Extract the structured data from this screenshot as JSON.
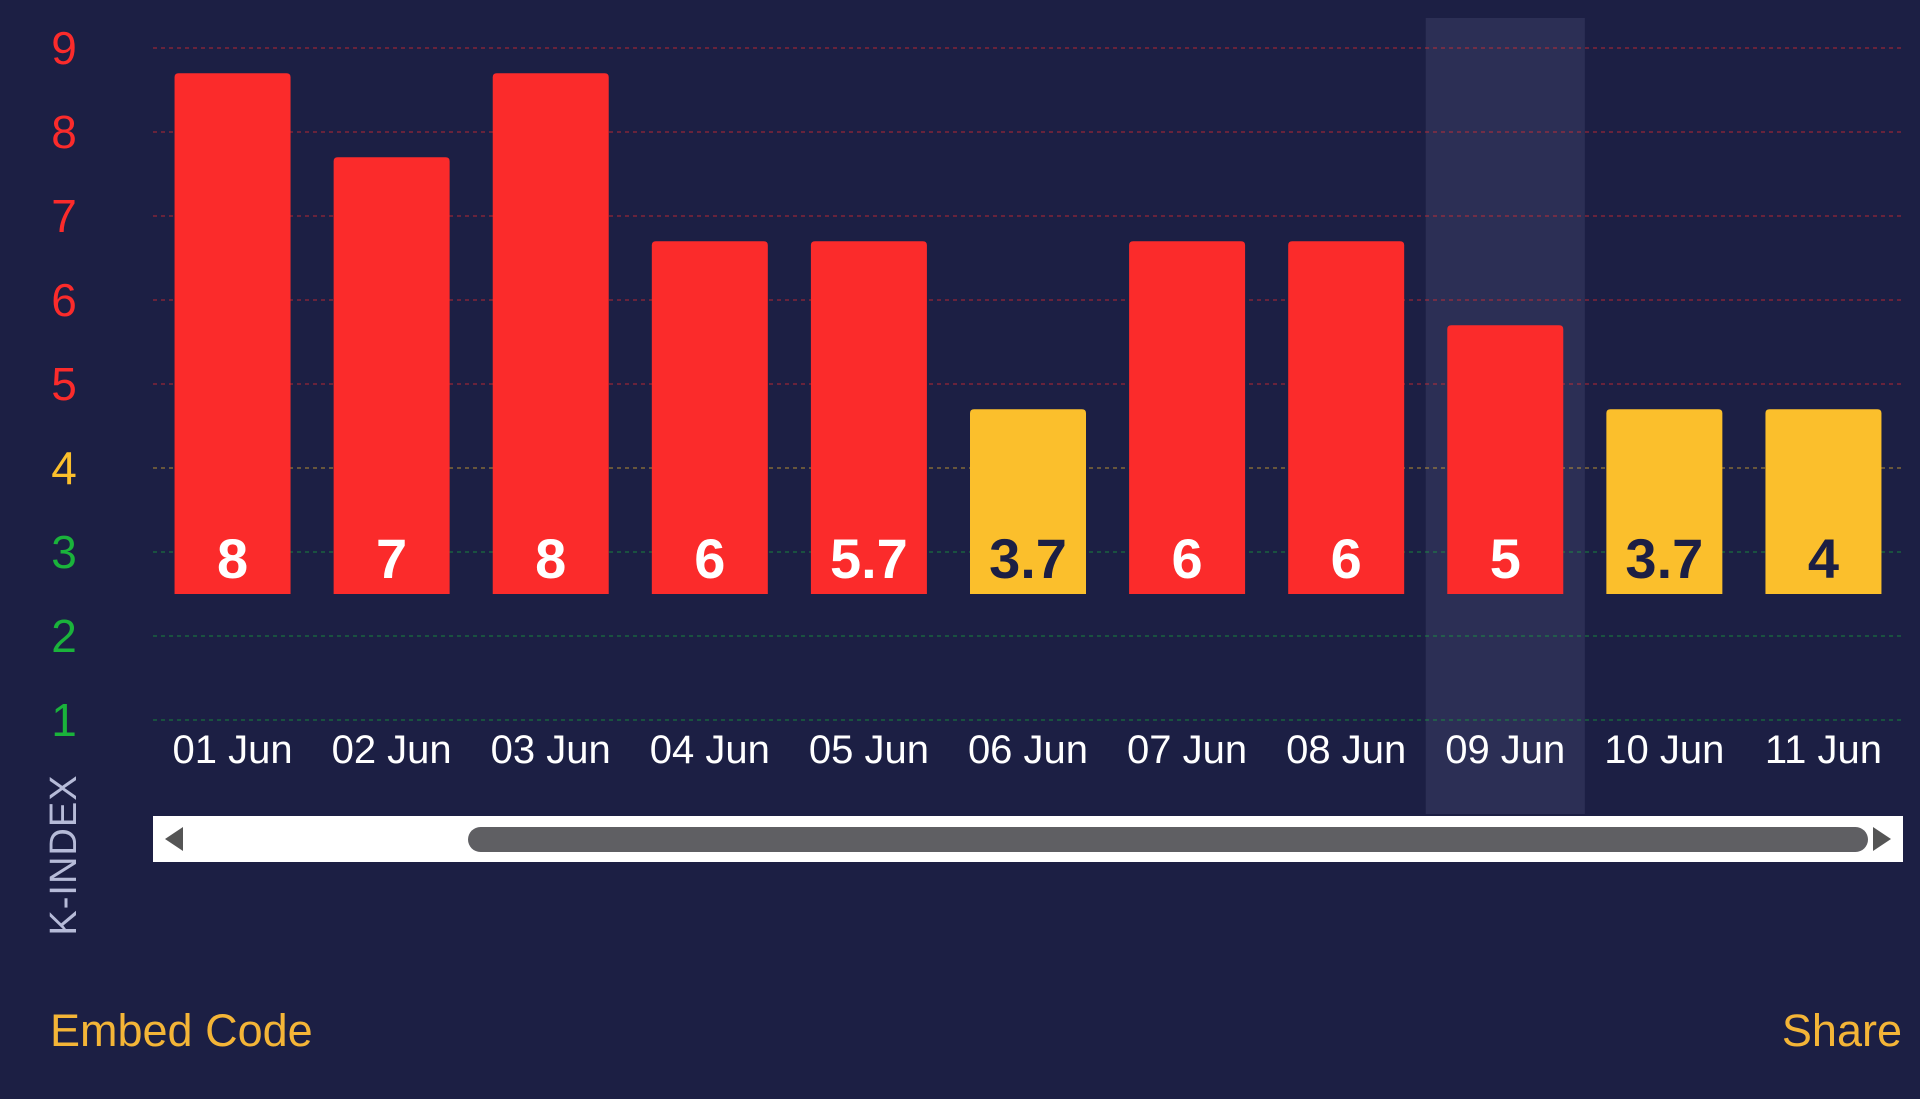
{
  "chart_data": {
    "type": "bar",
    "categories": [
      "01 Jun",
      "02 Jun",
      "03 Jun",
      "04 Jun",
      "05 Jun",
      "06 Jun",
      "07 Jun",
      "08 Jun",
      "09 Jun",
      "10 Jun",
      "11 Jun"
    ],
    "values": [
      8,
      7,
      8,
      6,
      5.7,
      3.7,
      6,
      6,
      5,
      3.7,
      4
    ],
    "value_labels": [
      "8",
      "7",
      "8",
      "6",
      "5.7",
      "3.7",
      "6",
      "6",
      "5",
      "3.7",
      "4"
    ],
    "bar_levels": [
      8.7,
      7.7,
      8.7,
      6.7,
      6.7,
      4.7,
      6.7,
      6.7,
      5.7,
      4.7,
      4.7
    ],
    "bar_colors": [
      "#fb2b2b",
      "#fb2b2b",
      "#fb2b2b",
      "#fb2b2b",
      "#fb2b2b",
      "#fbbf2c",
      "#fb2b2b",
      "#fb2b2b",
      "#fb2b2b",
      "#fbbf2c",
      "#fbbf2c"
    ],
    "value_label_colors": [
      "#ffffff",
      "#ffffff",
      "#ffffff",
      "#ffffff",
      "#ffffff",
      "#1c1f44",
      "#ffffff",
      "#ffffff",
      "#ffffff",
      "#1c1f44",
      "#1c1f44"
    ],
    "yticks": [
      1,
      2,
      3,
      4,
      5,
      6,
      7,
      8,
      9
    ],
    "ytick_labels": [
      "1",
      "2",
      "3",
      "4",
      "5",
      "6",
      "7",
      "8",
      "9"
    ],
    "ytick_colors": [
      "#1ab33b",
      "#1ab33b",
      "#1ab33b",
      "#fbbf2c",
      "#fb2b2b",
      "#fb2b2b",
      "#fb2b2b",
      "#fb2b2b",
      "#fb2b2b"
    ],
    "ylim": [
      1,
      9
    ],
    "ylabel": "K-INDEX",
    "xlabel": "",
    "title": "",
    "grid": true,
    "gridline_style": "dashed",
    "highlighted_category": "09 Jun",
    "legend": "none"
  },
  "scrollbar": {
    "left_arrow": "◀",
    "right_arrow": "▶",
    "thumb_start_fraction": 0.18,
    "thumb_end_fraction": 0.98
  },
  "footer": {
    "embed_label": "Embed Code",
    "share_label": "Share",
    "link_color": "#f4b537"
  },
  "colors": {
    "background": "#1c1f44",
    "highlight_band": "#2c2f55",
    "x_label": "#ffffff",
    "axis_title": "#b6bbd8",
    "scrollbar_track": "#ffffff",
    "scrollbar_thumb": "#5f5f63",
    "scrollbar_arrow": "#555555"
  }
}
